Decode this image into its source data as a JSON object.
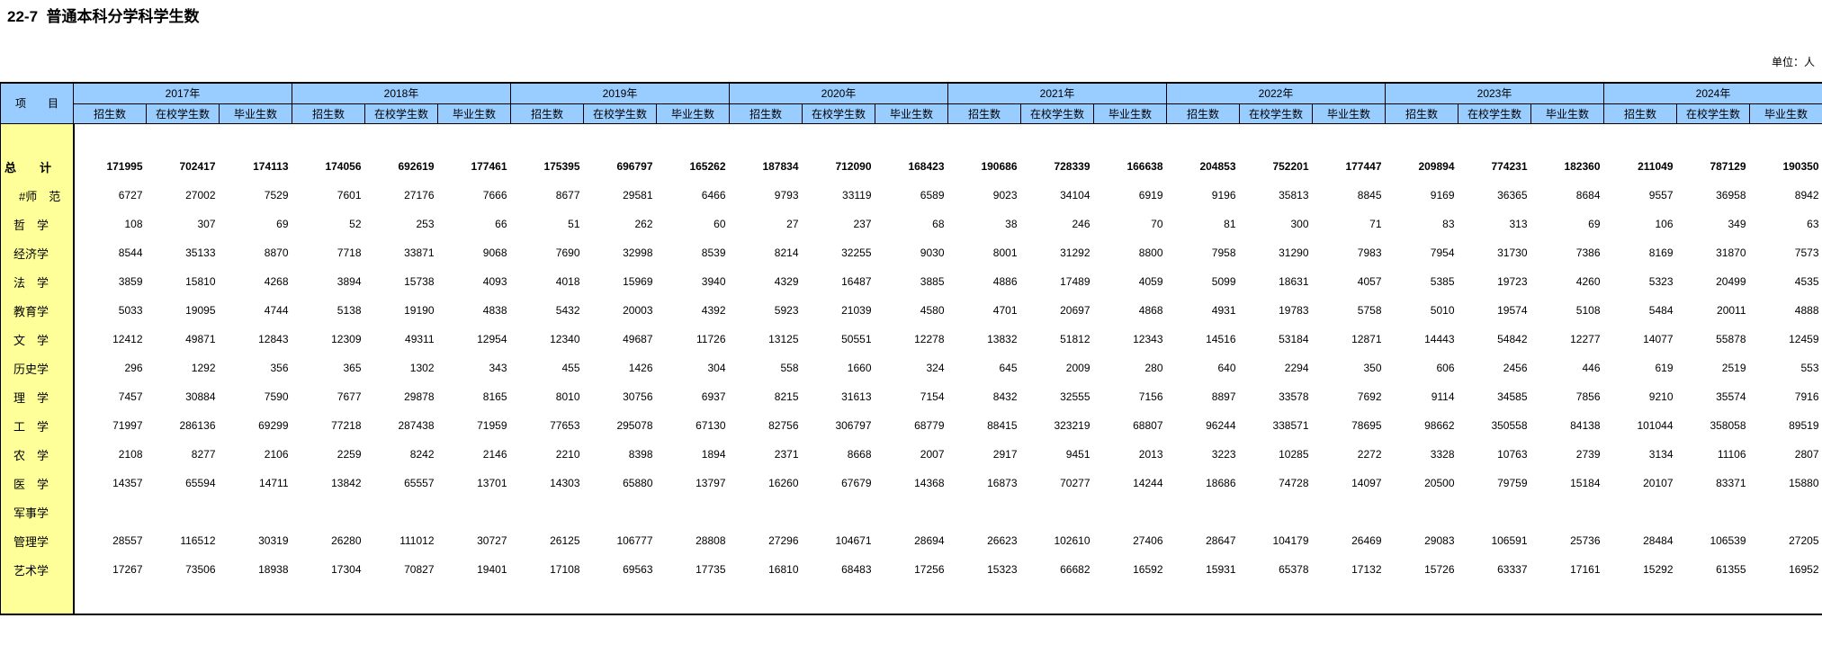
{
  "title": "22-7  普通本科分学科学生数",
  "unit_note": "单位：人",
  "colors": {
    "header_bg": "#99CCFF",
    "label_bg": "#FFFF99",
    "border": "#000000"
  },
  "header": {
    "item_label": "项　　目",
    "years": [
      "2017年",
      "2018年",
      "2019年",
      "2020年",
      "2021年",
      "2022年",
      "2023年",
      "2024年"
    ],
    "sub_columns": [
      "招生数",
      "在校学生数",
      "毕业生数"
    ]
  },
  "rows": [
    {
      "label": "总　　计",
      "indent": "l0",
      "bold": true,
      "values": [
        "171995",
        "702417",
        "174113",
        "174056",
        "692619",
        "177461",
        "175395",
        "696797",
        "165262",
        "187834",
        "712090",
        "168423",
        "190686",
        "728339",
        "166638",
        "204853",
        "752201",
        "177447",
        "209894",
        "774231",
        "182360",
        "211049",
        "787129",
        "190350"
      ]
    },
    {
      "label": "#师　范",
      "indent": "l2",
      "bold": false,
      "values": [
        "6727",
        "27002",
        "7529",
        "7601",
        "27176",
        "7666",
        "8677",
        "29581",
        "6466",
        "9793",
        "33119",
        "6589",
        "9023",
        "34104",
        "6919",
        "9196",
        "35813",
        "8845",
        "9169",
        "36365",
        "8684",
        "9557",
        "36958",
        "8942"
      ]
    },
    {
      "label": "哲　学",
      "indent": "l1",
      "bold": false,
      "values": [
        "108",
        "307",
        "69",
        "52",
        "253",
        "66",
        "51",
        "262",
        "60",
        "27",
        "237",
        "68",
        "38",
        "246",
        "70",
        "81",
        "300",
        "71",
        "83",
        "313",
        "69",
        "106",
        "349",
        "63"
      ]
    },
    {
      "label": "经济学",
      "indent": "l1",
      "bold": false,
      "values": [
        "8544",
        "35133",
        "8870",
        "7718",
        "33871",
        "9068",
        "7690",
        "32998",
        "8539",
        "8214",
        "32255",
        "9030",
        "8001",
        "31292",
        "8800",
        "7958",
        "31290",
        "7983",
        "7954",
        "31730",
        "7386",
        "8169",
        "31870",
        "7573"
      ]
    },
    {
      "label": "法　学",
      "indent": "l1",
      "bold": false,
      "values": [
        "3859",
        "15810",
        "4268",
        "3894",
        "15738",
        "4093",
        "4018",
        "15969",
        "3940",
        "4329",
        "16487",
        "3885",
        "4886",
        "17489",
        "4059",
        "5099",
        "18631",
        "4057",
        "5385",
        "19723",
        "4260",
        "5323",
        "20499",
        "4535"
      ]
    },
    {
      "label": "教育学",
      "indent": "l1",
      "bold": false,
      "values": [
        "5033",
        "19095",
        "4744",
        "5138",
        "19190",
        "4838",
        "5432",
        "20003",
        "4392",
        "5923",
        "21039",
        "4580",
        "4701",
        "20697",
        "4868",
        "4931",
        "19783",
        "5758",
        "5010",
        "19574",
        "5108",
        "5484",
        "20011",
        "4888"
      ]
    },
    {
      "label": "文　学",
      "indent": "l1",
      "bold": false,
      "values": [
        "12412",
        "49871",
        "12843",
        "12309",
        "49311",
        "12954",
        "12340",
        "49687",
        "11726",
        "13125",
        "50551",
        "12278",
        "13832",
        "51812",
        "12343",
        "14516",
        "53184",
        "12871",
        "14443",
        "54842",
        "12277",
        "14077",
        "55878",
        "12459"
      ]
    },
    {
      "label": "历史学",
      "indent": "l1",
      "bold": false,
      "values": [
        "296",
        "1292",
        "356",
        "365",
        "1302",
        "343",
        "455",
        "1426",
        "304",
        "558",
        "1660",
        "324",
        "645",
        "2009",
        "280",
        "640",
        "2294",
        "350",
        "606",
        "2456",
        "446",
        "619",
        "2519",
        "553"
      ]
    },
    {
      "label": "理　学",
      "indent": "l1",
      "bold": false,
      "values": [
        "7457",
        "30884",
        "7590",
        "7677",
        "29878",
        "8165",
        "8010",
        "30756",
        "6937",
        "8215",
        "31613",
        "7154",
        "8432",
        "32555",
        "7156",
        "8897",
        "33578",
        "7692",
        "9114",
        "34585",
        "7856",
        "9210",
        "35574",
        "7916"
      ]
    },
    {
      "label": "工　学",
      "indent": "l1",
      "bold": false,
      "values": [
        "71997",
        "286136",
        "69299",
        "77218",
        "287438",
        "71959",
        "77653",
        "295078",
        "67130",
        "82756",
        "306797",
        "68779",
        "88415",
        "323219",
        "68807",
        "96244",
        "338571",
        "78695",
        "98662",
        "350558",
        "84138",
        "101044",
        "358058",
        "89519"
      ]
    },
    {
      "label": "农　学",
      "indent": "l1",
      "bold": false,
      "values": [
        "2108",
        "8277",
        "2106",
        "2259",
        "8242",
        "2146",
        "2210",
        "8398",
        "1894",
        "2371",
        "8668",
        "2007",
        "2917",
        "9451",
        "2013",
        "3223",
        "10285",
        "2272",
        "3328",
        "10763",
        "2739",
        "3134",
        "11106",
        "2807"
      ]
    },
    {
      "label": "医　学",
      "indent": "l1",
      "bold": false,
      "values": [
        "14357",
        "65594",
        "14711",
        "13842",
        "65557",
        "13701",
        "14303",
        "65880",
        "13797",
        "16260",
        "67679",
        "14368",
        "16873",
        "70277",
        "14244",
        "18686",
        "74728",
        "14097",
        "20500",
        "79759",
        "15184",
        "20107",
        "83371",
        "15880"
      ]
    },
    {
      "label": "军事学",
      "indent": "l1",
      "bold": false,
      "values": [
        "",
        "",
        "",
        "",
        "",
        "",
        "",
        "",
        "",
        "",
        "",
        "",
        "",
        "",
        "",
        "",
        "",
        "",
        "",
        "",
        "",
        "",
        "",
        ""
      ]
    },
    {
      "label": "管理学",
      "indent": "l1",
      "bold": false,
      "values": [
        "28557",
        "116512",
        "30319",
        "26280",
        "111012",
        "30727",
        "26125",
        "106777",
        "28808",
        "27296",
        "104671",
        "28694",
        "26623",
        "102610",
        "27406",
        "28647",
        "104179",
        "26469",
        "29083",
        "106591",
        "25736",
        "28484",
        "106539",
        "27205"
      ]
    },
    {
      "label": "艺术学",
      "indent": "l1",
      "bold": false,
      "values": [
        "17267",
        "73506",
        "18938",
        "17304",
        "70827",
        "19401",
        "17108",
        "69563",
        "17735",
        "16810",
        "68483",
        "17256",
        "15323",
        "66682",
        "16592",
        "15931",
        "65378",
        "17132",
        "15726",
        "63337",
        "17161",
        "15292",
        "61355",
        "16952"
      ]
    }
  ]
}
